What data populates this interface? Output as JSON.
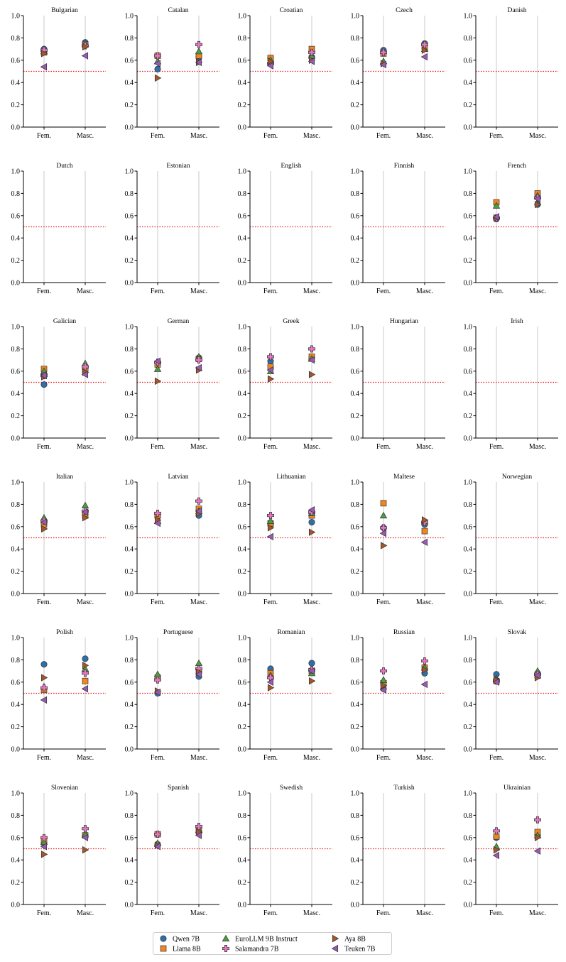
{
  "markers": {
    "Qwen 7B": {
      "shape": "circle",
      "color": "#2f6ea8"
    },
    "Llama 8B": {
      "shape": "square",
      "color": "#f0861f"
    },
    "EuroLLM 9B Instruct": {
      "shape": "triangle-up",
      "color": "#4a9e44"
    },
    "Salamandra 7B": {
      "shape": "plus",
      "color": "#e377c2"
    },
    "Aya 8B": {
      "shape": "triangle-right",
      "color": "#a65628"
    },
    "Teuken 7B": {
      "shape": "triangle-left",
      "color": "#9b59b6"
    }
  },
  "reference_line": {
    "y": 0.5,
    "color": "#e41a1c",
    "style": "dotted"
  },
  "legend": {
    "items": [
      "Qwen 7B",
      "Llama 8B",
      "EuroLLM 9B Instruct",
      "Salamandra 7B",
      "Aya 8B",
      "Teuken 7B"
    ]
  },
  "chart_data": {
    "type": "scatter",
    "layout": "small-multiples",
    "categories": [
      "Fem.",
      "Masc."
    ],
    "ylim": [
      0,
      1
    ],
    "yticks": [
      "0.0",
      "0.2",
      "0.4",
      "0.6",
      "0.8",
      "1.0"
    ],
    "series_names": [
      "Qwen 7B",
      "Llama 8B",
      "EuroLLM 9B Instruct",
      "Salamandra 7B",
      "Aya 8B",
      "Teuken 7B"
    ],
    "panels": [
      {
        "title": "Bulgarian",
        "series": {
          "Qwen 7B": [
            0.7,
            0.76
          ],
          "Llama 8B": [
            0.67,
            0.74
          ],
          "EuroLLM 9B Instruct": [
            0.68,
            0.75
          ],
          "Salamandra 7B": [
            0.69,
            0.73
          ],
          "Aya 8B": [
            0.66,
            0.72
          ],
          "Teuken 7B": [
            0.54,
            0.64
          ]
        }
      },
      {
        "title": "Catalan",
        "series": {
          "Qwen 7B": [
            0.52,
            0.63
          ],
          "Llama 8B": [
            0.64,
            0.64
          ],
          "EuroLLM 9B Instruct": [
            0.59,
            0.68
          ],
          "Salamandra 7B": [
            0.64,
            0.74
          ],
          "Aya 8B": [
            0.44,
            0.58
          ],
          "Teuken 7B": [
            0.57,
            0.58
          ]
        }
      },
      {
        "title": "Croatian",
        "series": {
          "Qwen 7B": [
            0.62,
            0.63
          ],
          "Llama 8B": [
            0.62,
            0.7
          ],
          "EuroLLM 9B Instruct": [
            0.6,
            0.64
          ],
          "Salamandra 7B": [
            0.57,
            0.67
          ],
          "Aya 8B": [
            0.59,
            0.6
          ],
          "Teuken 7B": [
            0.55,
            0.59
          ]
        }
      },
      {
        "title": "Czech",
        "series": {
          "Qwen 7B": [
            0.69,
            0.75
          ],
          "Llama 8B": [
            0.66,
            0.72
          ],
          "EuroLLM 9B Instruct": [
            0.59,
            0.7
          ],
          "Salamandra 7B": [
            0.67,
            0.74
          ],
          "Aya 8B": [
            0.57,
            0.69
          ],
          "Teuken 7B": [
            0.56,
            0.63
          ]
        }
      },
      {
        "title": "Danish",
        "series": {}
      },
      {
        "title": "Dutch",
        "series": {}
      },
      {
        "title": "Estonian",
        "series": {}
      },
      {
        "title": "English",
        "series": {}
      },
      {
        "title": "Finnish",
        "series": {}
      },
      {
        "title": "French",
        "series": {
          "Qwen 7B": [
            0.57,
            0.7
          ],
          "Llama 8B": [
            0.72,
            0.8
          ],
          "EuroLLM 9B Instruct": [
            0.69,
            0.78
          ],
          "Salamandra 7B": [
            0.58,
            0.76
          ],
          "Aya 8B": [
            0.58,
            0.7
          ],
          "Teuken 7B": [
            0.59,
            0.75
          ]
        }
      },
      {
        "title": "Galician",
        "series": {
          "Qwen 7B": [
            0.48,
            0.62
          ],
          "Llama 8B": [
            0.62,
            0.61
          ],
          "EuroLLM 9B Instruct": [
            0.6,
            0.67
          ],
          "Salamandra 7B": [
            0.56,
            0.64
          ],
          "Aya 8B": [
            0.55,
            0.59
          ],
          "Teuken 7B": [
            0.56,
            0.57
          ]
        }
      },
      {
        "title": "German",
        "series": {
          "Qwen 7B": [
            0.67,
            0.72
          ],
          "Llama 8B": [
            0.66,
            0.71
          ],
          "EuroLLM 9B Instruct": [
            0.62,
            0.73
          ],
          "Salamandra 7B": [
            0.68,
            0.7
          ],
          "Aya 8B": [
            0.51,
            0.61
          ],
          "Teuken 7B": [
            0.69,
            0.63
          ]
        }
      },
      {
        "title": "Greek",
        "series": {
          "Qwen 7B": [
            0.69,
            0.72
          ],
          "Llama 8B": [
            0.64,
            0.73
          ],
          "EuroLLM 9B Instruct": [
            0.6,
            0.71
          ],
          "Salamandra 7B": [
            0.73,
            0.8
          ],
          "Aya 8B": [
            0.53,
            0.57
          ],
          "Teuken 7B": [
            0.61,
            0.7
          ]
        }
      },
      {
        "title": "Hungarian",
        "series": {}
      },
      {
        "title": "Irish",
        "series": {}
      },
      {
        "title": "Italian",
        "series": {
          "Qwen 7B": [
            0.63,
            0.71
          ],
          "Llama 8B": [
            0.62,
            0.7
          ],
          "EuroLLM 9B Instruct": [
            0.68,
            0.79
          ],
          "Salamandra 7B": [
            0.65,
            0.74
          ],
          "Aya 8B": [
            0.58,
            0.68
          ],
          "Teuken 7B": [
            0.64,
            0.73
          ]
        }
      },
      {
        "title": "Latvian",
        "series": {
          "Qwen 7B": [
            0.69,
            0.7
          ],
          "Llama 8B": [
            0.7,
            0.76
          ],
          "EuroLLM 9B Instruct": [
            0.65,
            0.74
          ],
          "Salamandra 7B": [
            0.72,
            0.83
          ],
          "Aya 8B": [
            0.66,
            0.72
          ],
          "Teuken 7B": [
            0.63,
            0.74
          ]
        }
      },
      {
        "title": "Lithuanian",
        "series": {
          "Qwen 7B": [
            0.62,
            0.64
          ],
          "Llama 8B": [
            0.63,
            0.7
          ],
          "EuroLLM 9B Instruct": [
            0.65,
            0.72
          ],
          "Salamandra 7B": [
            0.7,
            0.73
          ],
          "Aya 8B": [
            0.59,
            0.55
          ],
          "Teuken 7B": [
            0.51,
            0.75
          ]
        }
      },
      {
        "title": "Maltese",
        "series": {
          "Qwen 7B": [
            0.59,
            0.62
          ],
          "Llama 8B": [
            0.81,
            0.56
          ],
          "EuroLLM 9B Instruct": [
            0.7,
            0.64
          ],
          "Salamandra 7B": [
            0.59,
            0.64
          ],
          "Aya 8B": [
            0.43,
            0.66
          ],
          "Teuken 7B": [
            0.54,
            0.46
          ]
        }
      },
      {
        "title": "Norwegian",
        "series": {}
      },
      {
        "title": "Polish",
        "series": {
          "Qwen 7B": [
            0.76,
            0.81
          ],
          "Llama 8B": [
            0.53,
            0.61
          ],
          "EuroLLM 9B Instruct": [
            0.56,
            0.72
          ],
          "Salamandra 7B": [
            0.55,
            0.68
          ],
          "Aya 8B": [
            0.64,
            0.75
          ],
          "Teuken 7B": [
            0.44,
            0.54
          ]
        }
      },
      {
        "title": "Portuguese",
        "series": {
          "Qwen 7B": [
            0.5,
            0.65
          ],
          "Llama 8B": [
            0.64,
            0.7
          ],
          "EuroLLM 9B Instruct": [
            0.67,
            0.77
          ],
          "Salamandra 7B": [
            0.62,
            0.72
          ],
          "Aya 8B": [
            0.52,
            0.69
          ],
          "Teuken 7B": [
            0.51,
            0.67
          ]
        }
      },
      {
        "title": "Romanian",
        "series": {
          "Qwen 7B": [
            0.72,
            0.77
          ],
          "Llama 8B": [
            0.68,
            0.7
          ],
          "EuroLLM 9B Instruct": [
            0.66,
            0.68
          ],
          "Salamandra 7B": [
            0.64,
            0.71
          ],
          "Aya 8B": [
            0.55,
            0.61
          ],
          "Teuken 7B": [
            0.6,
            0.7
          ]
        }
      },
      {
        "title": "Russian",
        "series": {
          "Qwen 7B": [
            0.54,
            0.68
          ],
          "Llama 8B": [
            0.59,
            0.73
          ],
          "EuroLLM 9B Instruct": [
            0.62,
            0.73
          ],
          "Salamandra 7B": [
            0.7,
            0.79
          ],
          "Aya 8B": [
            0.57,
            0.71
          ],
          "Teuken 7B": [
            0.53,
            0.58
          ]
        }
      },
      {
        "title": "Slovak",
        "series": {
          "Qwen 7B": [
            0.67,
            0.68
          ],
          "Llama 8B": [
            0.61,
            0.66
          ],
          "EuroLLM 9B Instruct": [
            0.63,
            0.7
          ],
          "Salamandra 7B": [
            0.61,
            0.67
          ],
          "Aya 8B": [
            0.62,
            0.64
          ],
          "Teuken 7B": [
            0.6,
            0.66
          ]
        }
      },
      {
        "title": "Slovenian",
        "series": {
          "Qwen 7B": [
            0.55,
            0.62
          ],
          "Llama 8B": [
            0.57,
            0.62
          ],
          "EuroLLM 9B Instruct": [
            0.56,
            0.63
          ],
          "Salamandra 7B": [
            0.6,
            0.68
          ],
          "Aya 8B": [
            0.45,
            0.49
          ],
          "Teuken 7B": [
            0.52,
            0.6
          ]
        }
      },
      {
        "title": "Spanish",
        "series": {
          "Qwen 7B": [
            0.54,
            0.65
          ],
          "Llama 8B": [
            0.63,
            0.66
          ],
          "EuroLLM 9B Instruct": [
            0.55,
            0.67
          ],
          "Salamandra 7B": [
            0.63,
            0.7
          ],
          "Aya 8B": [
            0.53,
            0.65
          ],
          "Teuken 7B": [
            0.52,
            0.62
          ]
        }
      },
      {
        "title": "Swedish",
        "series": {}
      },
      {
        "title": "Turkish",
        "series": {}
      },
      {
        "title": "Ukrainian",
        "series": {
          "Qwen 7B": [
            0.6,
            0.62
          ],
          "Llama 8B": [
            0.61,
            0.65
          ],
          "EuroLLM 9B Instruct": [
            0.52,
            0.62
          ],
          "Salamandra 7B": [
            0.66,
            0.76
          ],
          "Aya 8B": [
            0.49,
            0.6
          ],
          "Teuken 7B": [
            0.44,
            0.48
          ]
        }
      }
    ]
  }
}
